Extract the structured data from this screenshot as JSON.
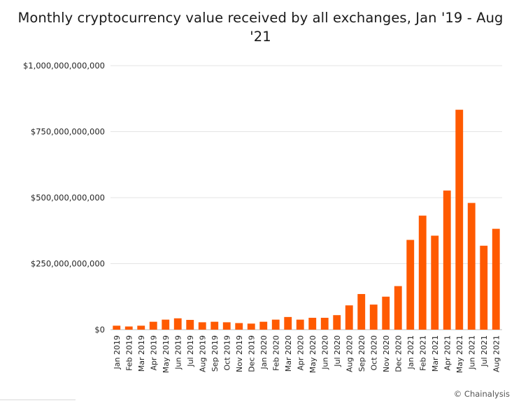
{
  "chart_data": {
    "type": "bar",
    "title": "Monthly cryptocurrency value received by all exchanges, Jan '19 - Aug '21",
    "xlabel": "",
    "ylabel": "",
    "ylim": [
      0,
      1000000000000
    ],
    "yticks": [
      0,
      250000000000,
      500000000000,
      750000000000,
      1000000000000
    ],
    "ytick_labels": [
      "$0",
      "$250,000,000,000",
      "$500,000,000,000",
      "$750,000,000,000",
      "$1,000,000,000,000"
    ],
    "grid": "horizontal",
    "color": "#ff5a00",
    "categories": [
      "Jan 2019",
      "Feb 2019",
      "Mar 2019",
      "Apr 2019",
      "May 2019",
      "Jun 2019",
      "Jul 2019",
      "Aug 2019",
      "Sep 2019",
      "Oct 2019",
      "Nov 2019",
      "Dec 2019",
      "Jan 2020",
      "Feb 2020",
      "Mar 2020",
      "Apr 2020",
      "May 2020",
      "Jun 2020",
      "Jul 2020",
      "Aug 2020",
      "Sep 2020",
      "Oct 2020",
      "Nov 2020",
      "Dec 2020",
      "Jan 2021",
      "Feb 2021",
      "Mar 2021",
      "Apr 2021",
      "May 2021",
      "Jun 2021",
      "Jul 2021",
      "Aug 2021"
    ],
    "values": [
      15000000000,
      12000000000,
      15000000000,
      30000000000,
      38000000000,
      43000000000,
      37000000000,
      28000000000,
      30000000000,
      28000000000,
      25000000000,
      23000000000,
      30000000000,
      38000000000,
      48000000000,
      38000000000,
      45000000000,
      45000000000,
      55000000000,
      92000000000,
      135000000000,
      95000000000,
      125000000000,
      165000000000,
      340000000000,
      432000000000,
      356000000000,
      527000000000,
      833000000000,
      480000000000,
      318000000000,
      382000000000
    ]
  },
  "brand": "© Chainalysis"
}
